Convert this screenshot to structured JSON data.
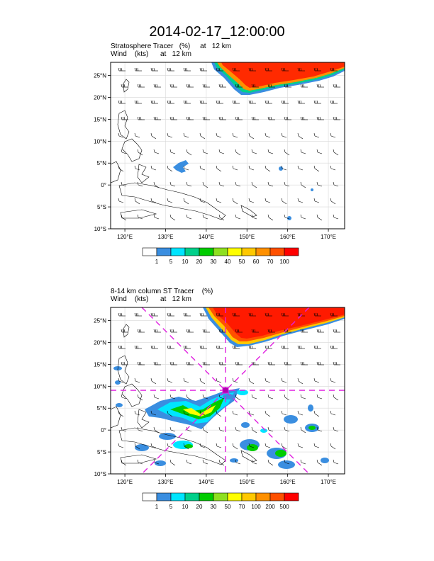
{
  "title": "2014-02-17_12:00:00",
  "panels": [
    {
      "label_line1": "Stratosphere Tracer   (%)     at   12 km",
      "label_line2": "Wind    (kts)      at   12 km",
      "lat_labels": [
        "25°N",
        "20°N",
        "15°N",
        "10°N",
        "5°N",
        "0°",
        "5°S",
        "10°S"
      ],
      "lon_labels": [
        "120°E",
        "130°E",
        "140°E",
        "150°E",
        "160°E",
        "170°E"
      ],
      "colorbar": {
        "labels": [
          "1",
          "5",
          "10",
          "20",
          "30",
          "40",
          "50",
          "60",
          "70",
          "100"
        ],
        "colors": [
          "#ffffff",
          "#3a8ee0",
          "#00e5ff",
          "#00d08a",
          "#00cc00",
          "#8ee020",
          "#ffff00",
          "#ffc800",
          "#ff9000",
          "#ff5000",
          "#ff0000"
        ]
      }
    },
    {
      "label_line1": "8-14 km column ST Tracer    (%)",
      "label_line2": "Wind    (kts)      at   12 km",
      "lat_labels": [
        "25°N",
        "20°N",
        "15°N",
        "10°N",
        "5°N",
        "0°",
        "5°S",
        "10°S"
      ],
      "lon_labels": [
        "120°E",
        "130°E",
        "140°E",
        "150°E",
        "160°E",
        "170°E"
      ],
      "colorbar": {
        "labels": [
          "1",
          "5",
          "10",
          "20",
          "30",
          "50",
          "70",
          "100",
          "200",
          "500"
        ],
        "colors": [
          "#ffffff",
          "#3a8ee0",
          "#00e5ff",
          "#00d08a",
          "#00cc00",
          "#8ee020",
          "#ffff00",
          "#ffc800",
          "#ff9000",
          "#ff5000",
          "#ff0000"
        ]
      }
    }
  ]
}
